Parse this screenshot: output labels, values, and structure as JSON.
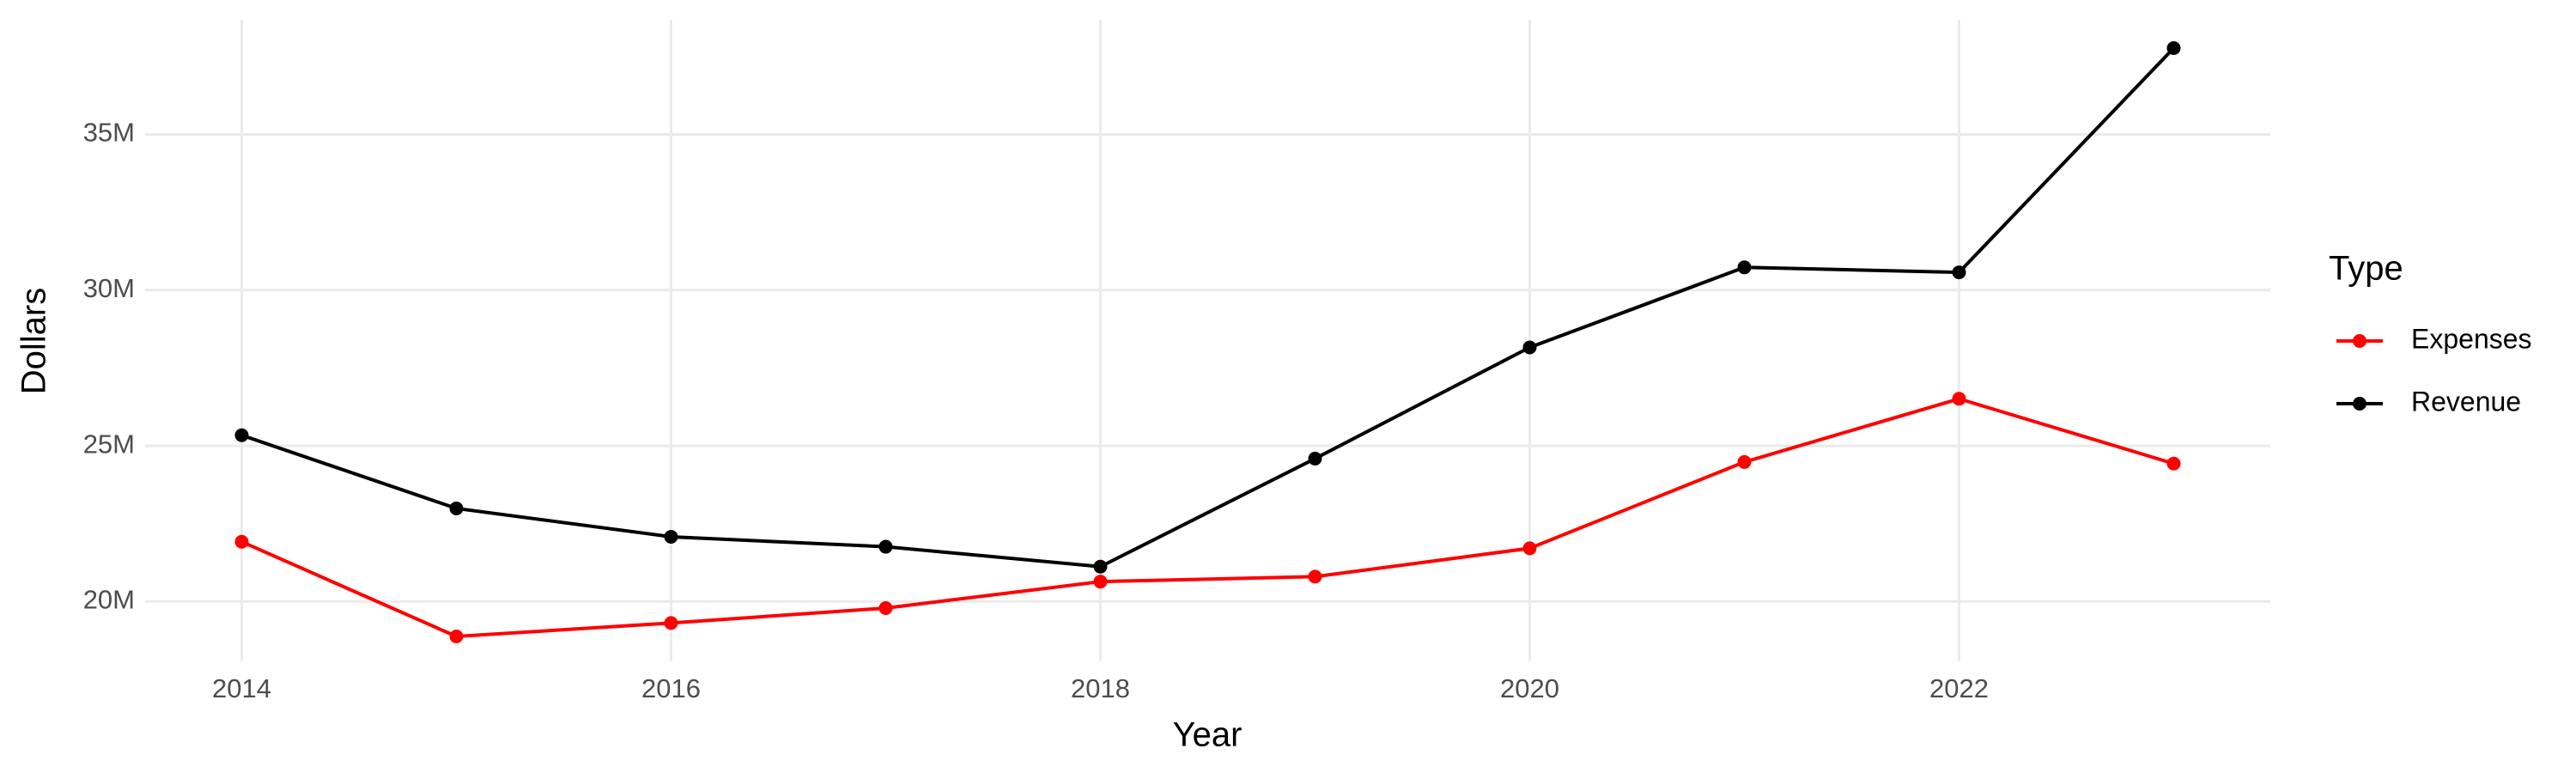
{
  "chart_data": {
    "type": "line",
    "x_label": "Year",
    "y_label": "Dollars",
    "legend_title": "Type",
    "x": [
      2014,
      2015,
      2016,
      2017,
      2018,
      2019,
      2020,
      2021,
      2022,
      2023
    ],
    "series": [
      {
        "name": "Expenses",
        "color": "#ff0000",
        "values": [
          21920000,
          18880000,
          19310000,
          19790000,
          20640000,
          20800000,
          21710000,
          24480000,
          26510000,
          24430000
        ]
      },
      {
        "name": "Revenue",
        "color": "#000000",
        "values": [
          25340000,
          22990000,
          22080000,
          21760000,
          21120000,
          24590000,
          28160000,
          30730000,
          30570000,
          37770000
        ]
      }
    ],
    "xlim": [
      2013.55,
      2023.45
    ],
    "xticks": [
      2014,
      2016,
      2018,
      2020,
      2022
    ],
    "ylim": [
      18080000,
      38680000
    ],
    "yticks": [
      {
        "value": 20000000,
        "label": "20M"
      },
      {
        "value": 25000000,
        "label": "25M"
      },
      {
        "value": 30000000,
        "label": "30M"
      },
      {
        "value": 35000000,
        "label": "35M"
      }
    ],
    "grid": true,
    "legend": "right"
  }
}
